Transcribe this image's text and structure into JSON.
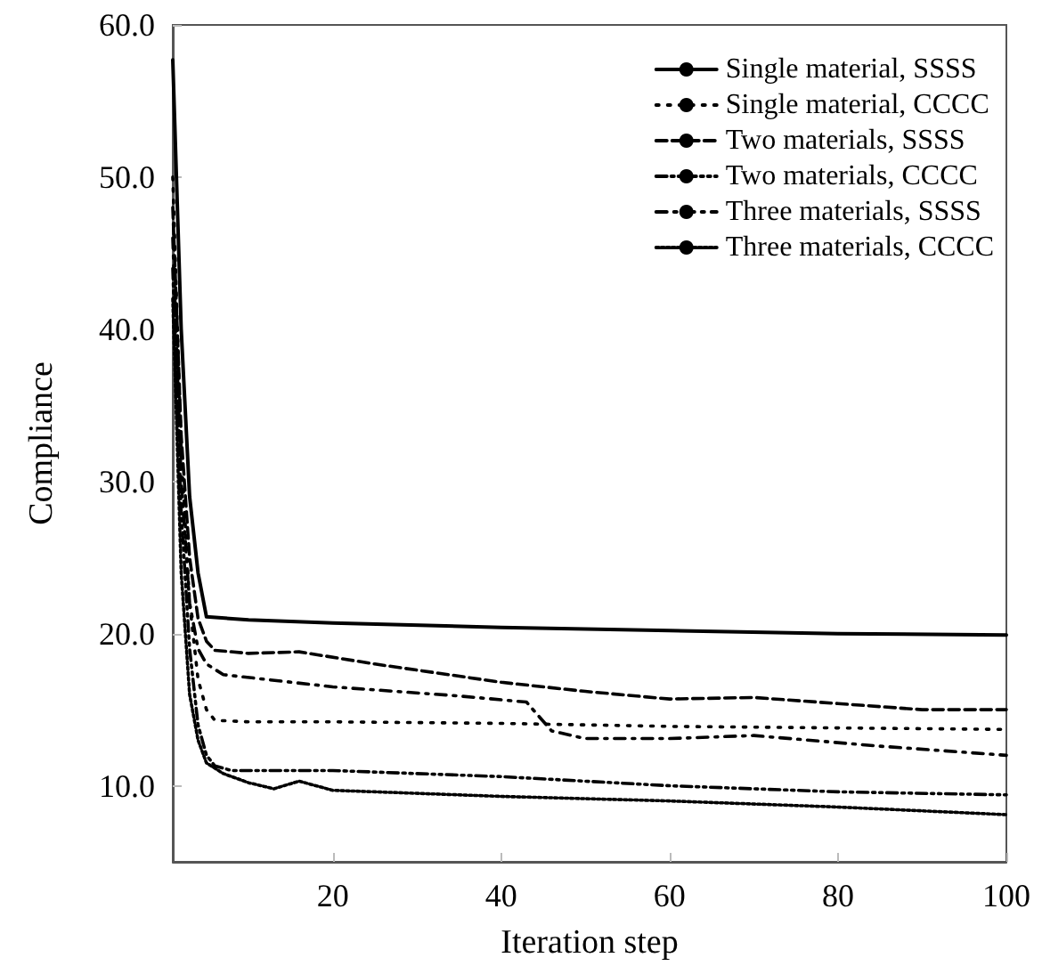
{
  "chart_data": {
    "type": "line",
    "xlabel": "Iteration step",
    "ylabel": "Compliance",
    "xlim": [
      1,
      100
    ],
    "xticks": [
      20,
      40,
      60,
      80,
      100
    ],
    "ylim": [
      5,
      60
    ],
    "yticks": [
      {
        "value": 10,
        "label": "10.0"
      },
      {
        "value": 20,
        "label": "20.0"
      },
      {
        "value": 30,
        "label": "30.0"
      },
      {
        "value": 40,
        "label": "40.0"
      },
      {
        "value": 50,
        "label": "50.0"
      },
      {
        "value": 60,
        "label": "60.0"
      }
    ],
    "legend": "top right",
    "marker": "none",
    "series": [
      {
        "name": "Single material, SSSS",
        "color": "#000000",
        "line_style": "solid",
        "x": [
          1,
          2,
          3,
          4,
          5,
          10,
          20,
          40,
          60,
          80,
          100
        ],
        "values": [
          57.7,
          40,
          29,
          24,
          21.1,
          20.9,
          20.7,
          20.4,
          20.2,
          20,
          19.9
        ]
      },
      {
        "name": "Single material, CCCC",
        "color": "#000000",
        "line_style": "dotted",
        "x": [
          1,
          2,
          3,
          4,
          5,
          6,
          10,
          20,
          40,
          60,
          80,
          100
        ],
        "values": [
          50,
          32,
          22,
          17,
          15,
          14.3,
          14.2,
          14.2,
          14.1,
          13.9,
          13.8,
          13.7
        ]
      },
      {
        "name": "Two materials, SSSS",
        "color": "#000000",
        "line_style": "dashed",
        "x": [
          1,
          2,
          3,
          4,
          5,
          6,
          10,
          16,
          25,
          40,
          50,
          60,
          70,
          80,
          90,
          100
        ],
        "values": [
          48,
          33,
          25,
          21,
          19.5,
          18.9,
          18.7,
          18.8,
          18,
          16.8,
          16.2,
          15.7,
          15.8,
          15.4,
          15,
          15
        ]
      },
      {
        "name": "Two materials, CCCC",
        "color": "#000000",
        "line_style": "dashdotdot",
        "x": [
          1,
          2,
          3,
          4,
          5,
          6,
          8,
          20,
          40,
          60,
          80,
          100
        ],
        "values": [
          44,
          28,
          19,
          14,
          12,
          11.3,
          11,
          11,
          10.6,
          10,
          9.6,
          9.4
        ]
      },
      {
        "name": "Three materials, SSSS",
        "color": "#000000",
        "line_style": "dashdot",
        "x": [
          1,
          2,
          3,
          4,
          5,
          7,
          20,
          35,
          43,
          46,
          50,
          60,
          70,
          85,
          100
        ],
        "values": [
          46,
          30,
          22,
          19,
          18,
          17.3,
          16.5,
          15.9,
          15.5,
          13.6,
          13.1,
          13.1,
          13.3,
          12.6,
          12
        ]
      },
      {
        "name": "Three materials, CCCC",
        "color": "#000000",
        "line_style": "densely_dotted",
        "x": [
          1,
          2,
          3,
          4,
          5,
          7,
          10,
          13,
          16,
          20,
          40,
          60,
          80,
          100
        ],
        "values": [
          42,
          24,
          16,
          13,
          11.5,
          10.8,
          10.2,
          9.8,
          10.3,
          9.7,
          9.3,
          9,
          8.6,
          8.1
        ]
      }
    ]
  }
}
